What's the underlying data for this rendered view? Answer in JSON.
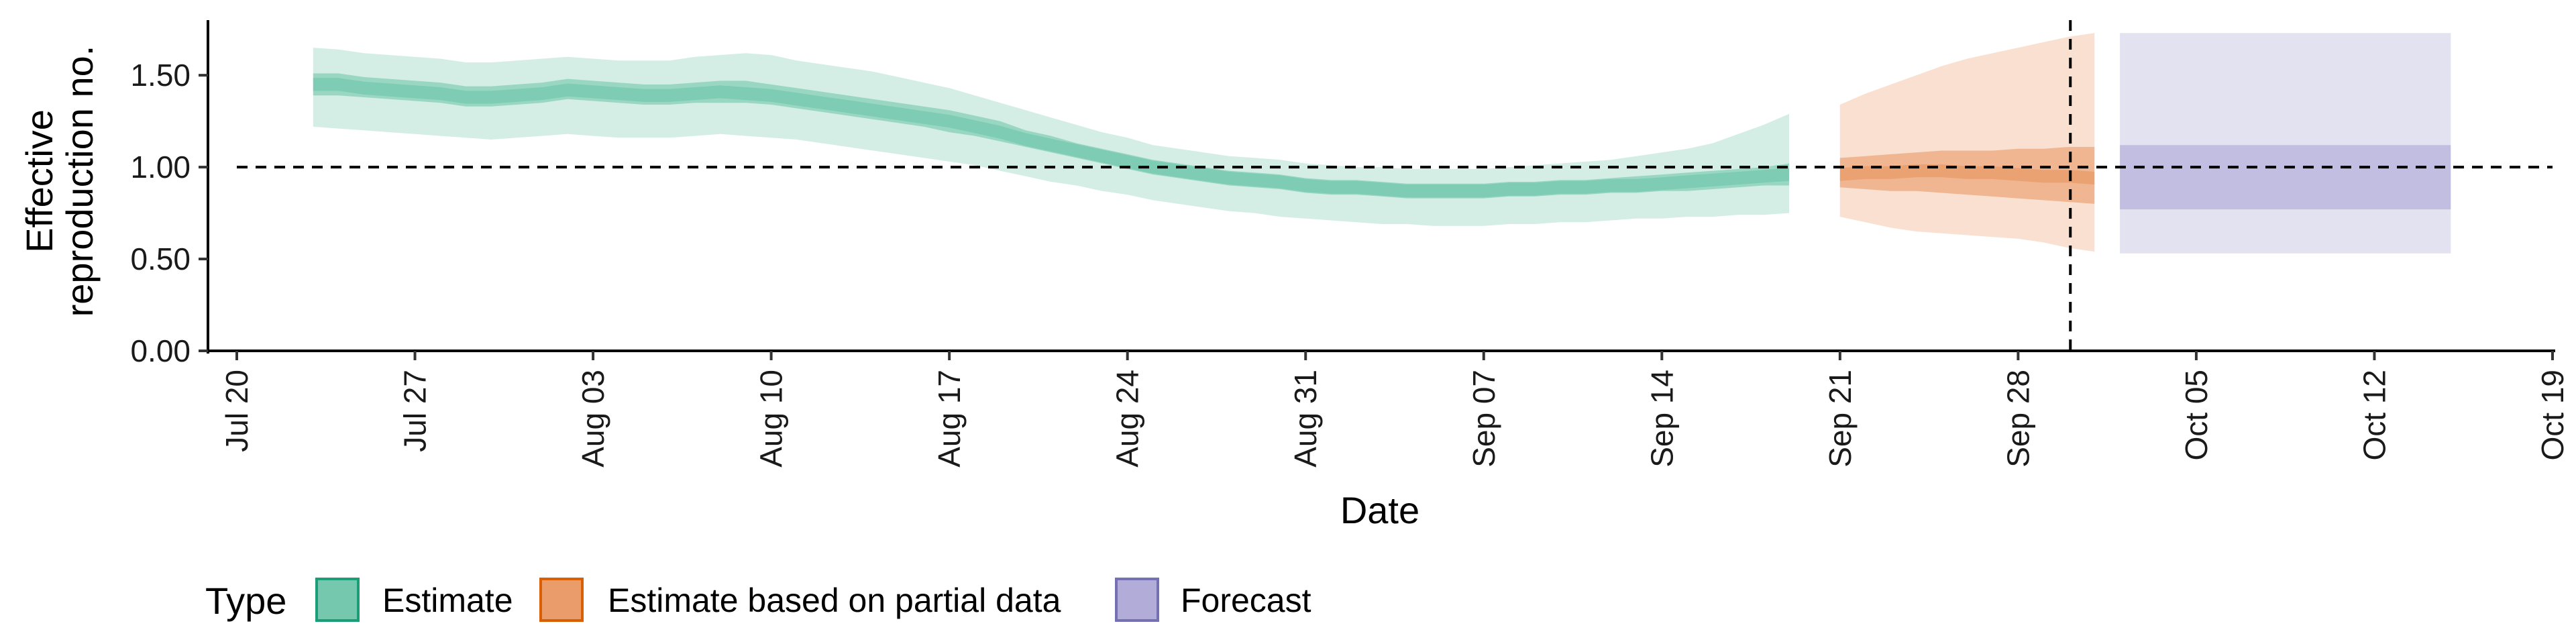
{
  "chart_data": {
    "type": "area",
    "xlabel": "Date",
    "ylabel_lines": [
      "Effective",
      "reproduction no."
    ],
    "ylim": [
      0,
      1.8
    ],
    "xlim": [
      "2020-07-20",
      "2020-10-19"
    ],
    "y_ticks": [
      0.0,
      0.5,
      1.0,
      1.5
    ],
    "y_tick_labels": [
      "0.00",
      "0.50",
      "1.00",
      "1.50"
    ],
    "x_ticks": [
      "2020-07-20",
      "2020-07-27",
      "2020-08-03",
      "2020-08-10",
      "2020-08-17",
      "2020-08-24",
      "2020-08-31",
      "2020-09-07",
      "2020-09-14",
      "2020-09-21",
      "2020-09-28",
      "2020-10-05",
      "2020-10-12",
      "2020-10-19"
    ],
    "x_tick_labels": [
      "Jul 20",
      "Jul 27",
      "Aug 03",
      "Aug 10",
      "Aug 17",
      "Aug 24",
      "Aug 31",
      "Sep 07",
      "Sep 14",
      "Sep 21",
      "Sep 28",
      "Oct 05",
      "Oct 12",
      "Oct 19"
    ],
    "reference_line_y": 1.0,
    "forecast_start_date": "2020-09-30",
    "grid": false,
    "legend_position": "bottom-left",
    "legend_title": "Type",
    "series": [
      {
        "name": "Estimate",
        "color": "#1b9e77",
        "fill_color": "#66c2a5",
        "x": [
          "2020-07-23",
          "2020-07-24",
          "2020-07-25",
          "2020-07-26",
          "2020-07-27",
          "2020-07-28",
          "2020-07-29",
          "2020-07-30",
          "2020-07-31",
          "2020-08-01",
          "2020-08-02",
          "2020-08-03",
          "2020-08-04",
          "2020-08-05",
          "2020-08-06",
          "2020-08-07",
          "2020-08-08",
          "2020-08-09",
          "2020-08-10",
          "2020-08-11",
          "2020-08-12",
          "2020-08-13",
          "2020-08-14",
          "2020-08-15",
          "2020-08-16",
          "2020-08-17",
          "2020-08-18",
          "2020-08-19",
          "2020-08-20",
          "2020-08-21",
          "2020-08-22",
          "2020-08-23",
          "2020-08-24",
          "2020-08-25",
          "2020-08-26",
          "2020-08-27",
          "2020-08-28",
          "2020-08-29",
          "2020-08-30",
          "2020-08-31",
          "2020-09-01",
          "2020-09-02",
          "2020-09-03",
          "2020-09-04",
          "2020-09-05",
          "2020-09-06",
          "2020-09-07",
          "2020-09-08",
          "2020-09-09",
          "2020-09-10",
          "2020-09-11",
          "2020-09-12",
          "2020-09-13",
          "2020-09-14",
          "2020-09-15",
          "2020-09-16",
          "2020-09-17",
          "2020-09-18",
          "2020-09-19"
        ],
        "median": [
          1.45,
          1.45,
          1.43,
          1.42,
          1.41,
          1.4,
          1.38,
          1.38,
          1.39,
          1.4,
          1.42,
          1.41,
          1.4,
          1.39,
          1.39,
          1.4,
          1.41,
          1.4,
          1.39,
          1.37,
          1.35,
          1.33,
          1.31,
          1.29,
          1.27,
          1.25,
          1.22,
          1.19,
          1.15,
          1.12,
          1.09,
          1.06,
          1.03,
          1.0,
          0.98,
          0.96,
          0.94,
          0.93,
          0.92,
          0.9,
          0.89,
          0.89,
          0.88,
          0.87,
          0.87,
          0.87,
          0.87,
          0.88,
          0.88,
          0.89,
          0.89,
          0.9,
          0.9,
          0.91,
          0.92,
          0.93,
          0.94,
          0.95,
          0.96
        ],
        "lower_50": [
          1.39,
          1.39,
          1.38,
          1.37,
          1.36,
          1.35,
          1.33,
          1.33,
          1.34,
          1.35,
          1.37,
          1.36,
          1.35,
          1.34,
          1.34,
          1.35,
          1.35,
          1.35,
          1.34,
          1.32,
          1.3,
          1.28,
          1.26,
          1.24,
          1.22,
          1.19,
          1.17,
          1.14,
          1.11,
          1.08,
          1.05,
          1.02,
          0.99,
          0.96,
          0.94,
          0.92,
          0.9,
          0.89,
          0.88,
          0.86,
          0.85,
          0.85,
          0.84,
          0.83,
          0.83,
          0.83,
          0.83,
          0.84,
          0.84,
          0.85,
          0.85,
          0.86,
          0.86,
          0.87,
          0.87,
          0.88,
          0.89,
          0.9,
          0.9
        ],
        "upper_50": [
          1.51,
          1.51,
          1.49,
          1.48,
          1.47,
          1.46,
          1.44,
          1.44,
          1.45,
          1.46,
          1.48,
          1.47,
          1.46,
          1.45,
          1.45,
          1.46,
          1.47,
          1.47,
          1.45,
          1.43,
          1.41,
          1.39,
          1.37,
          1.35,
          1.33,
          1.31,
          1.28,
          1.25,
          1.2,
          1.17,
          1.13,
          1.1,
          1.07,
          1.04,
          1.02,
          1.0,
          0.98,
          0.97,
          0.96,
          0.94,
          0.93,
          0.93,
          0.92,
          0.91,
          0.91,
          0.91,
          0.91,
          0.92,
          0.92,
          0.93,
          0.93,
          0.94,
          0.95,
          0.96,
          0.97,
          0.98,
          0.99,
          1.0,
          1.02
        ],
        "lower_90": [
          1.22,
          1.21,
          1.2,
          1.19,
          1.18,
          1.17,
          1.16,
          1.15,
          1.16,
          1.17,
          1.18,
          1.17,
          1.16,
          1.16,
          1.16,
          1.17,
          1.18,
          1.17,
          1.16,
          1.15,
          1.13,
          1.11,
          1.09,
          1.07,
          1.05,
          1.03,
          1.01,
          0.98,
          0.95,
          0.92,
          0.9,
          0.87,
          0.85,
          0.82,
          0.8,
          0.78,
          0.76,
          0.75,
          0.73,
          0.72,
          0.71,
          0.7,
          0.69,
          0.69,
          0.68,
          0.68,
          0.68,
          0.69,
          0.69,
          0.7,
          0.7,
          0.71,
          0.72,
          0.72,
          0.73,
          0.73,
          0.74,
          0.74,
          0.75
        ],
        "upper_90": [
          1.65,
          1.64,
          1.62,
          1.61,
          1.6,
          1.59,
          1.57,
          1.57,
          1.58,
          1.59,
          1.6,
          1.59,
          1.58,
          1.58,
          1.58,
          1.6,
          1.61,
          1.62,
          1.61,
          1.58,
          1.56,
          1.54,
          1.52,
          1.49,
          1.46,
          1.43,
          1.39,
          1.35,
          1.31,
          1.27,
          1.23,
          1.19,
          1.16,
          1.12,
          1.1,
          1.08,
          1.06,
          1.05,
          1.04,
          1.02,
          1.01,
          1.0,
          1.0,
          0.99,
          0.99,
          0.99,
          0.99,
          1.0,
          1.01,
          1.02,
          1.03,
          1.04,
          1.06,
          1.08,
          1.1,
          1.13,
          1.18,
          1.23,
          1.29
        ]
      },
      {
        "name": "Estimate based on partial data",
        "color": "#d95f02",
        "fill_color": "#e8915a",
        "x": [
          "2020-09-21",
          "2020-09-22",
          "2020-09-23",
          "2020-09-24",
          "2020-09-25",
          "2020-09-26",
          "2020-09-27",
          "2020-09-28",
          "2020-09-29",
          "2020-09-30",
          "2020-10-01"
        ],
        "median": [
          0.96,
          0.97,
          0.97,
          0.98,
          0.98,
          0.97,
          0.97,
          0.96,
          0.95,
          0.95,
          0.94
        ],
        "lower_50": [
          0.89,
          0.88,
          0.87,
          0.87,
          0.86,
          0.85,
          0.84,
          0.83,
          0.82,
          0.81,
          0.8
        ],
        "upper_50": [
          1.05,
          1.06,
          1.07,
          1.08,
          1.09,
          1.09,
          1.09,
          1.1,
          1.1,
          1.11,
          1.11
        ],
        "lower_90": [
          0.73,
          0.7,
          0.67,
          0.65,
          0.64,
          0.63,
          0.62,
          0.61,
          0.59,
          0.56,
          0.54
        ],
        "upper_90": [
          1.34,
          1.4,
          1.45,
          1.5,
          1.55,
          1.59,
          1.62,
          1.65,
          1.68,
          1.71,
          1.73
        ]
      },
      {
        "name": "Forecast",
        "color": "#7570b3",
        "fill_color": "#a8a4d4",
        "x": [
          "2020-10-02",
          "2020-10-15"
        ],
        "median": [
          0.95,
          0.95
        ],
        "lower_50": [
          0.77,
          0.77
        ],
        "upper_50": [
          1.12,
          1.12
        ],
        "lower_90": [
          0.53,
          0.53
        ],
        "upper_90": [
          1.73,
          1.73
        ]
      }
    ]
  }
}
